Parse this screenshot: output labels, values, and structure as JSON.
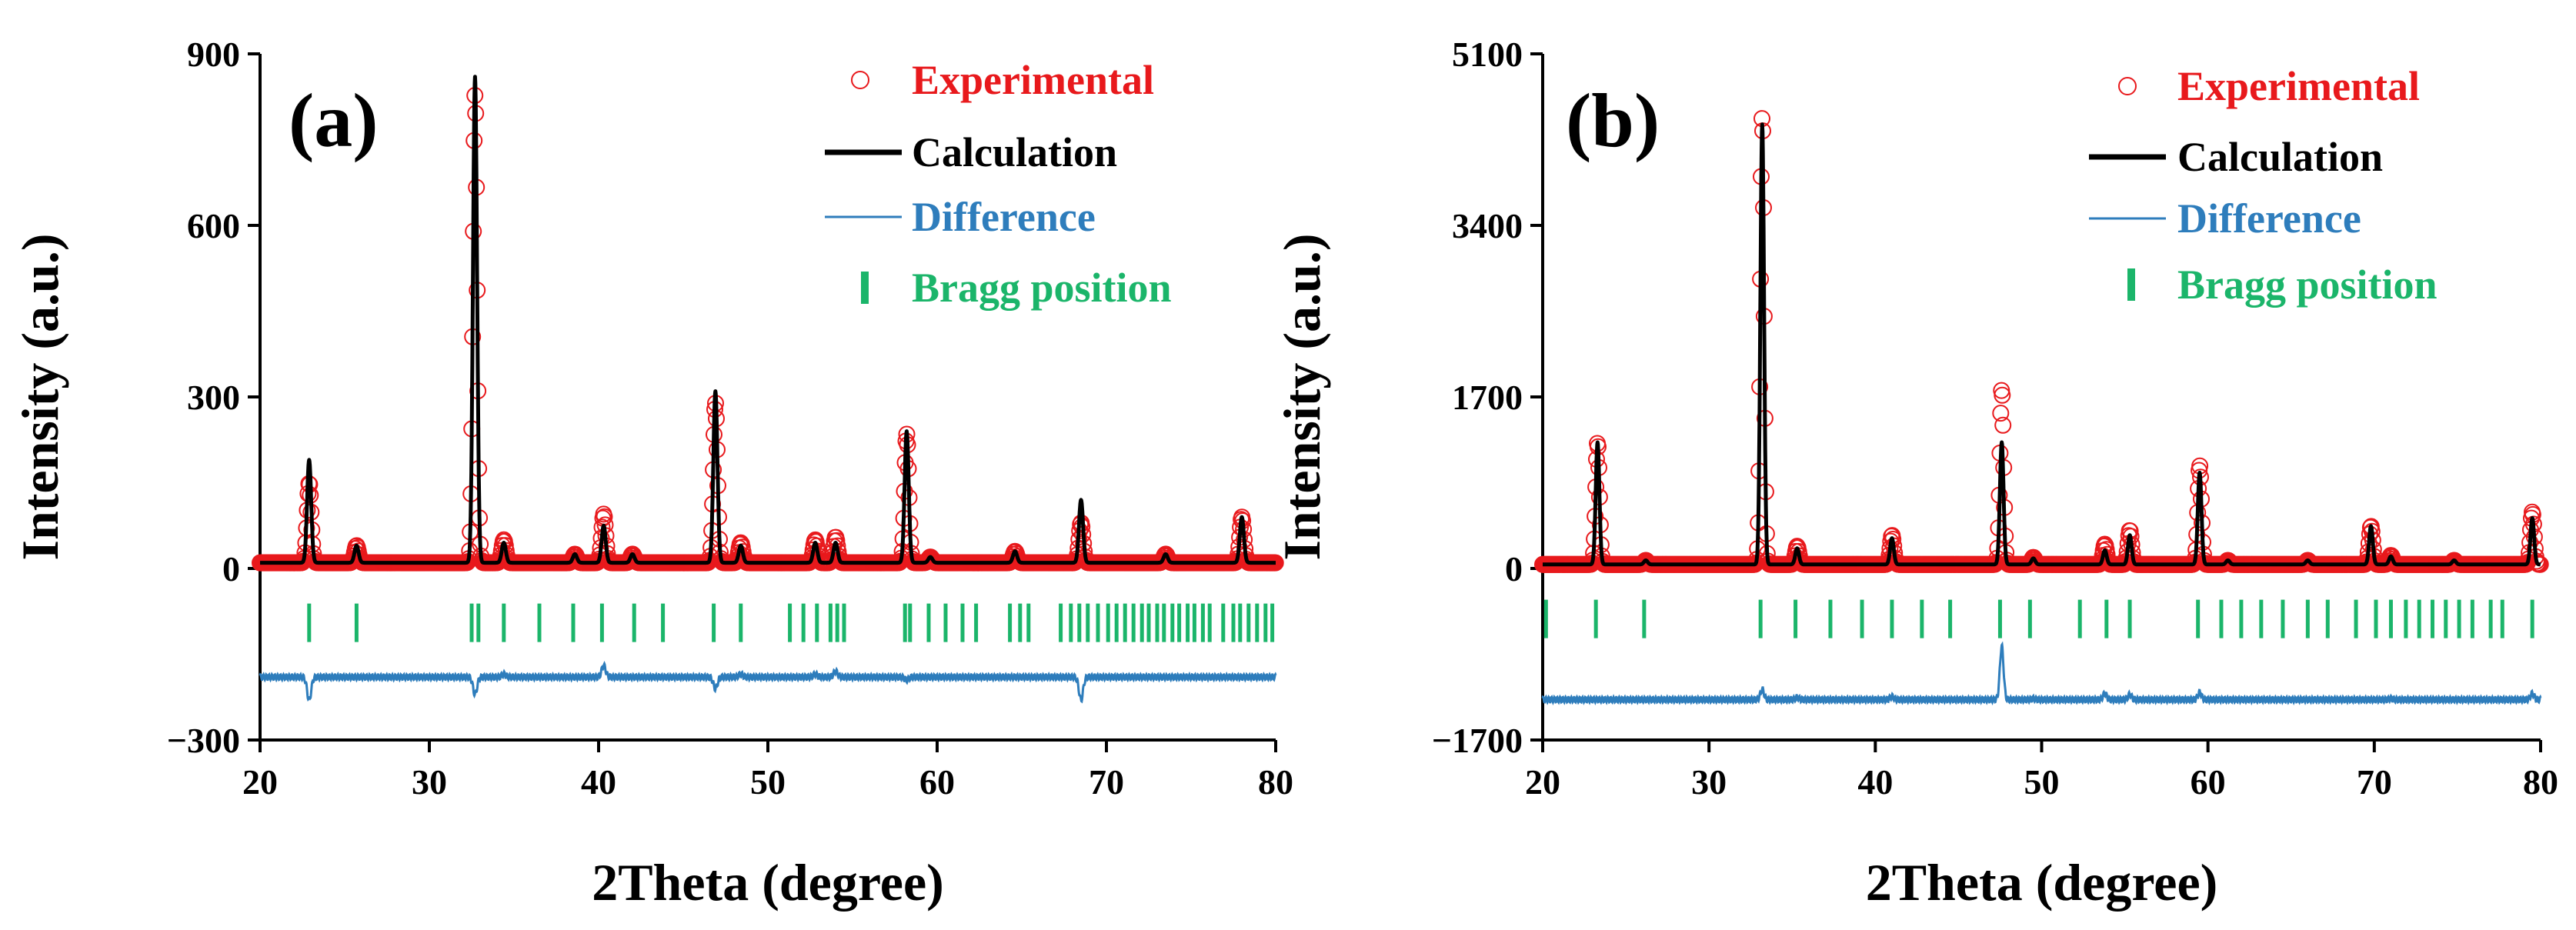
{
  "colors": {
    "experimental": "#e8191c",
    "calculation": "#000000",
    "difference": "#2e7dbc",
    "bragg": "#1bb56a",
    "axis": "#000000"
  },
  "chart_data": [
    {
      "type": "line",
      "panel_label": "(a)",
      "xlabel": "2Theta (degree)",
      "ylabel": "Intensity (a.u.)",
      "xlim": [
        20,
        80
      ],
      "ylim": [
        -300,
        900
      ],
      "xticks": [
        20,
        30,
        40,
        50,
        60,
        70,
        80
      ],
      "yticks": [
        -300,
        0,
        300,
        600,
        900
      ],
      "ytick_labels": [
        "−300",
        "0",
        "300",
        "600",
        "900"
      ],
      "legend": [
        {
          "key": "experimental",
          "label": "Experimental",
          "marker": "open-circle"
        },
        {
          "key": "calculation",
          "label": "Calculation",
          "marker": "line"
        },
        {
          "key": "difference",
          "label": "Difference",
          "marker": "thin-line"
        },
        {
          "key": "bragg",
          "label": "Bragg position",
          "marker": "tick"
        }
      ],
      "baseline": 10,
      "peaks": [
        {
          "x": 22.9,
          "calc": 190,
          "obs": 150
        },
        {
          "x": 25.7,
          "calc": 40,
          "obs": 40
        },
        {
          "x": 32.7,
          "calc": 860,
          "obs": 830
        },
        {
          "x": 34.4,
          "calc": 45,
          "obs": 50
        },
        {
          "x": 38.6,
          "calc": 25,
          "obs": 25
        },
        {
          "x": 40.3,
          "calc": 75,
          "obs": 95
        },
        {
          "x": 42.0,
          "calc": 25,
          "obs": 25
        },
        {
          "x": 46.9,
          "calc": 310,
          "obs": 290
        },
        {
          "x": 48.4,
          "calc": 40,
          "obs": 45
        },
        {
          "x": 52.8,
          "calc": 45,
          "obs": 50
        },
        {
          "x": 54.0,
          "calc": 45,
          "obs": 55
        },
        {
          "x": 58.2,
          "calc": 240,
          "obs": 235
        },
        {
          "x": 59.6,
          "calc": 20,
          "obs": 20
        },
        {
          "x": 64.6,
          "calc": 30,
          "obs": 30
        },
        {
          "x": 68.5,
          "calc": 120,
          "obs": 80
        },
        {
          "x": 73.5,
          "calc": 25,
          "obs": 25
        },
        {
          "x": 78.0,
          "calc": 90,
          "obs": 90
        }
      ],
      "bragg_positions": [
        22.9,
        25.7,
        32.5,
        32.9,
        34.4,
        36.5,
        38.5,
        40.2,
        42.1,
        43.8,
        46.8,
        48.4,
        51.3,
        52.1,
        52.9,
        53.7,
        54.1,
        54.5,
        58.1,
        58.4,
        59.5,
        60.5,
        61.5,
        62.3,
        64.3,
        64.9,
        65.4,
        67.3,
        67.9,
        68.4,
        68.9,
        69.5,
        70.1,
        70.6,
        71.1,
        71.6,
        72.1,
        72.5,
        73.0,
        73.4,
        73.9,
        74.3,
        74.8,
        75.2,
        75.7,
        76.1,
        76.9,
        77.5,
        77.9,
        78.4,
        78.9,
        79.4,
        79.8
      ],
      "bragg_level": -95,
      "difference_offset": -190
    },
    {
      "type": "line",
      "panel_label": "(b)",
      "xlabel": "2Theta (degree)",
      "ylabel": "Intensity (a.u.)",
      "xlim": [
        20,
        80
      ],
      "ylim": [
        -1700,
        5100
      ],
      "xticks": [
        20,
        30,
        40,
        50,
        60,
        70,
        80
      ],
      "yticks": [
        -1700,
        0,
        1700,
        3400,
        5100
      ],
      "ytick_labels": [
        "−1700",
        "0",
        "1700",
        "3400",
        "5100"
      ],
      "legend": [
        {
          "key": "experimental",
          "label": "Experimental",
          "marker": "open-circle"
        },
        {
          "key": "calculation",
          "label": "Calculation",
          "marker": "line"
        },
        {
          "key": "difference",
          "label": "Difference",
          "marker": "thin-line"
        },
        {
          "key": "bragg",
          "label": "Bragg position",
          "marker": "tick"
        }
      ],
      "baseline": 40,
      "peaks": [
        {
          "x": 23.3,
          "calc": 1250,
          "obs": 1250
        },
        {
          "x": 26.2,
          "calc": 80,
          "obs": 80
        },
        {
          "x": 33.2,
          "calc": 4400,
          "obs": 4500
        },
        {
          "x": 35.3,
          "calc": 200,
          "obs": 220
        },
        {
          "x": 41.0,
          "calc": 300,
          "obs": 330
        },
        {
          "x": 47.6,
          "calc": 1250,
          "obs": 1780
        },
        {
          "x": 49.5,
          "calc": 100,
          "obs": 110
        },
        {
          "x": 53.8,
          "calc": 180,
          "obs": 240
        },
        {
          "x": 55.3,
          "calc": 330,
          "obs": 380
        },
        {
          "x": 59.5,
          "calc": 950,
          "obs": 1020
        },
        {
          "x": 61.2,
          "calc": 80,
          "obs": 80
        },
        {
          "x": 66.0,
          "calc": 80,
          "obs": 80
        },
        {
          "x": 69.8,
          "calc": 420,
          "obs": 420
        },
        {
          "x": 71.0,
          "calc": 120,
          "obs": 130
        },
        {
          "x": 74.8,
          "calc": 80,
          "obs": 80
        },
        {
          "x": 79.5,
          "calc": 500,
          "obs": 560
        }
      ],
      "bragg_positions": [
        20.2,
        23.2,
        26.1,
        33.1,
        35.2,
        37.3,
        39.2,
        41.0,
        42.8,
        44.5,
        47.5,
        49.3,
        52.3,
        53.9,
        55.3,
        59.4,
        60.8,
        62.0,
        63.2,
        64.5,
        66.0,
        67.2,
        68.9,
        70.1,
        71.0,
        71.9,
        72.7,
        73.5,
        74.3,
        75.1,
        75.9,
        77.0,
        77.7,
        79.5
      ],
      "bragg_level": -500,
      "difference_offset": -1300
    }
  ]
}
